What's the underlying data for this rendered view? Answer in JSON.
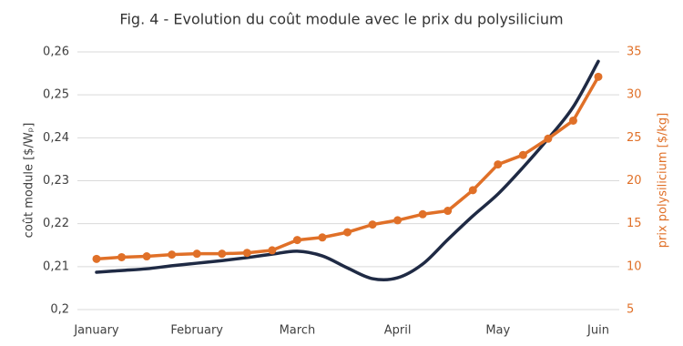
{
  "chart_data": {
    "type": "line",
    "title": "Fig. 4 - Evolution du coût module avec le prix du polysilicium",
    "y_label": "coût module [$/Wₚ]",
    "y2_label": "prix polysilicium [$/kg]",
    "categories": [
      "January",
      null,
      null,
      null,
      "February",
      null,
      null,
      null,
      "March",
      null,
      null,
      null,
      "April",
      null,
      null,
      null,
      "May",
      null,
      null,
      null,
      "Juin"
    ],
    "series": [
      {
        "name": "coût module",
        "color": "#1f2a44",
        "axis": "y",
        "smooth": true,
        "markers": false,
        "values": [
          0.2087,
          0.2091,
          0.2095,
          0.2102,
          0.2108,
          0.2114,
          0.2121,
          0.2129,
          0.2136,
          0.2125,
          0.2097,
          0.2072,
          0.2074,
          0.2106,
          0.2163,
          0.2218,
          0.2269,
          0.2331,
          0.2398,
          0.2472,
          0.2578
        ]
      },
      {
        "name": "prix polysilicium",
        "color": "#e07028",
        "axis": "y2",
        "smooth": false,
        "markers": true,
        "values": [
          10.9,
          11.1,
          11.2,
          11.4,
          11.5,
          11.5,
          11.6,
          11.9,
          13.1,
          13.4,
          14.0,
          14.9,
          15.4,
          16.1,
          16.5,
          18.9,
          21.9,
          23.0,
          24.9,
          27.0,
          32.1
        ]
      }
    ],
    "ylim": [
      0.2,
      0.26
    ],
    "yticks": [
      {
        "value": 0.2,
        "label": "0,2"
      },
      {
        "value": 0.21,
        "label": "0,21"
      },
      {
        "value": 0.22,
        "label": "0,22"
      },
      {
        "value": 0.23,
        "label": "0,23"
      },
      {
        "value": 0.24,
        "label": "0,24"
      },
      {
        "value": 0.25,
        "label": "0,25"
      },
      {
        "value": 0.26,
        "label": "0,26"
      }
    ],
    "y2lim": [
      5,
      35
    ],
    "y2ticks": [
      5,
      10,
      15,
      20,
      25,
      30,
      35
    ],
    "grid": true
  }
}
